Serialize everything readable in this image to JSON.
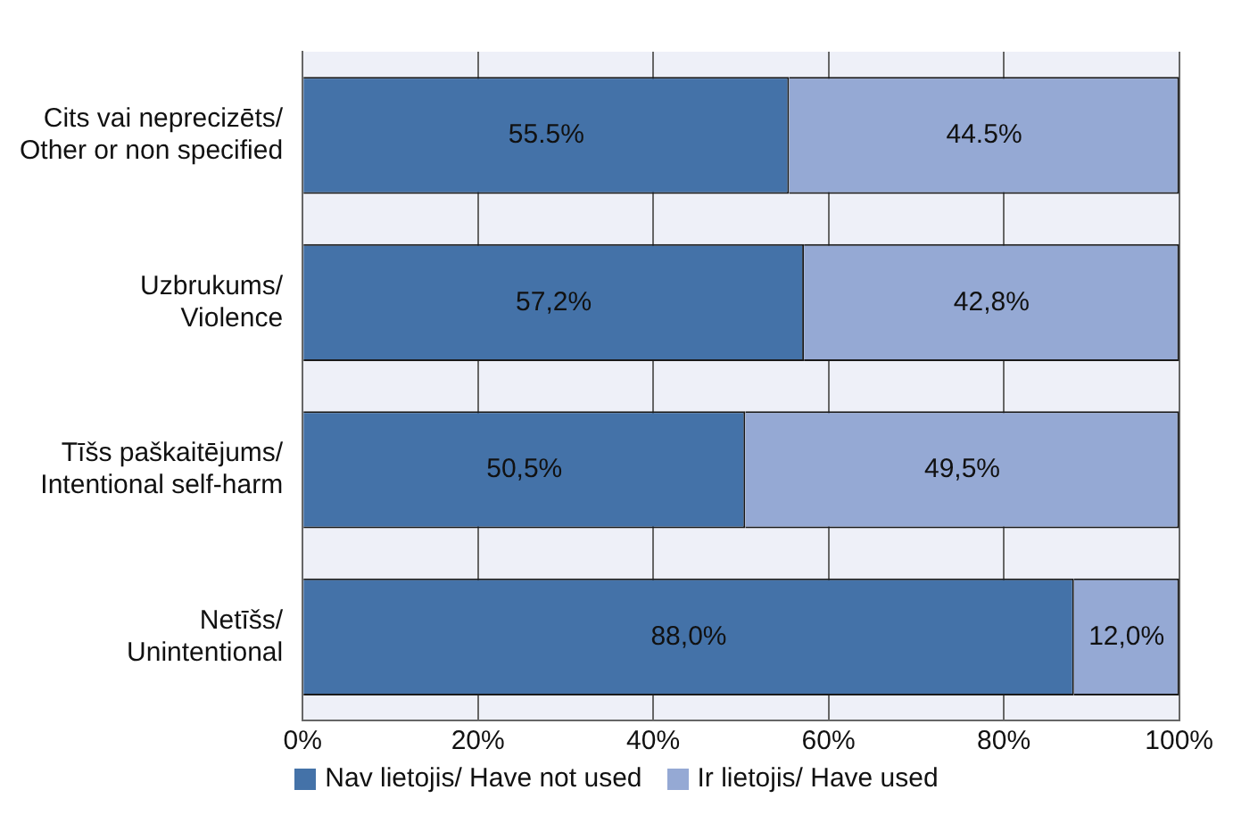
{
  "chart_data": {
    "type": "bar",
    "orientation": "horizontal",
    "stacked": true,
    "categories": [
      "Cits vai neprecizēts/ Other or non specified",
      "Uzbrukums/ Violence",
      "Tīšs paškaitējums/ Intentional self-harm",
      "Netīšs/ Unintentional"
    ],
    "series": [
      {
        "name": "Nav lietojis/ Have not used",
        "color": "#4472a8",
        "values": [
          55.5,
          57.2,
          50.5,
          88.0
        ],
        "value_labels": [
          "55.5%",
          "57,2%",
          "50,5%",
          "88,0%"
        ]
      },
      {
        "name": "Ir lietojis/ Have used",
        "color": "#95a9d4",
        "values": [
          44.5,
          42.8,
          49.5,
          12.0
        ],
        "value_labels": [
          "44.5%",
          "42,8%",
          "49,5%",
          "12,0%"
        ]
      }
    ],
    "xlim": [
      0,
      100
    ],
    "xticks": [
      {
        "value": 0,
        "label": "0%"
      },
      {
        "value": 20,
        "label": "20%"
      },
      {
        "value": 40,
        "label": "40%"
      },
      {
        "value": 60,
        "label": "60%"
      },
      {
        "value": 80,
        "label": "80%"
      },
      {
        "value": 100,
        "label": "100%"
      }
    ],
    "grid": "x",
    "legend": "bottom"
  }
}
